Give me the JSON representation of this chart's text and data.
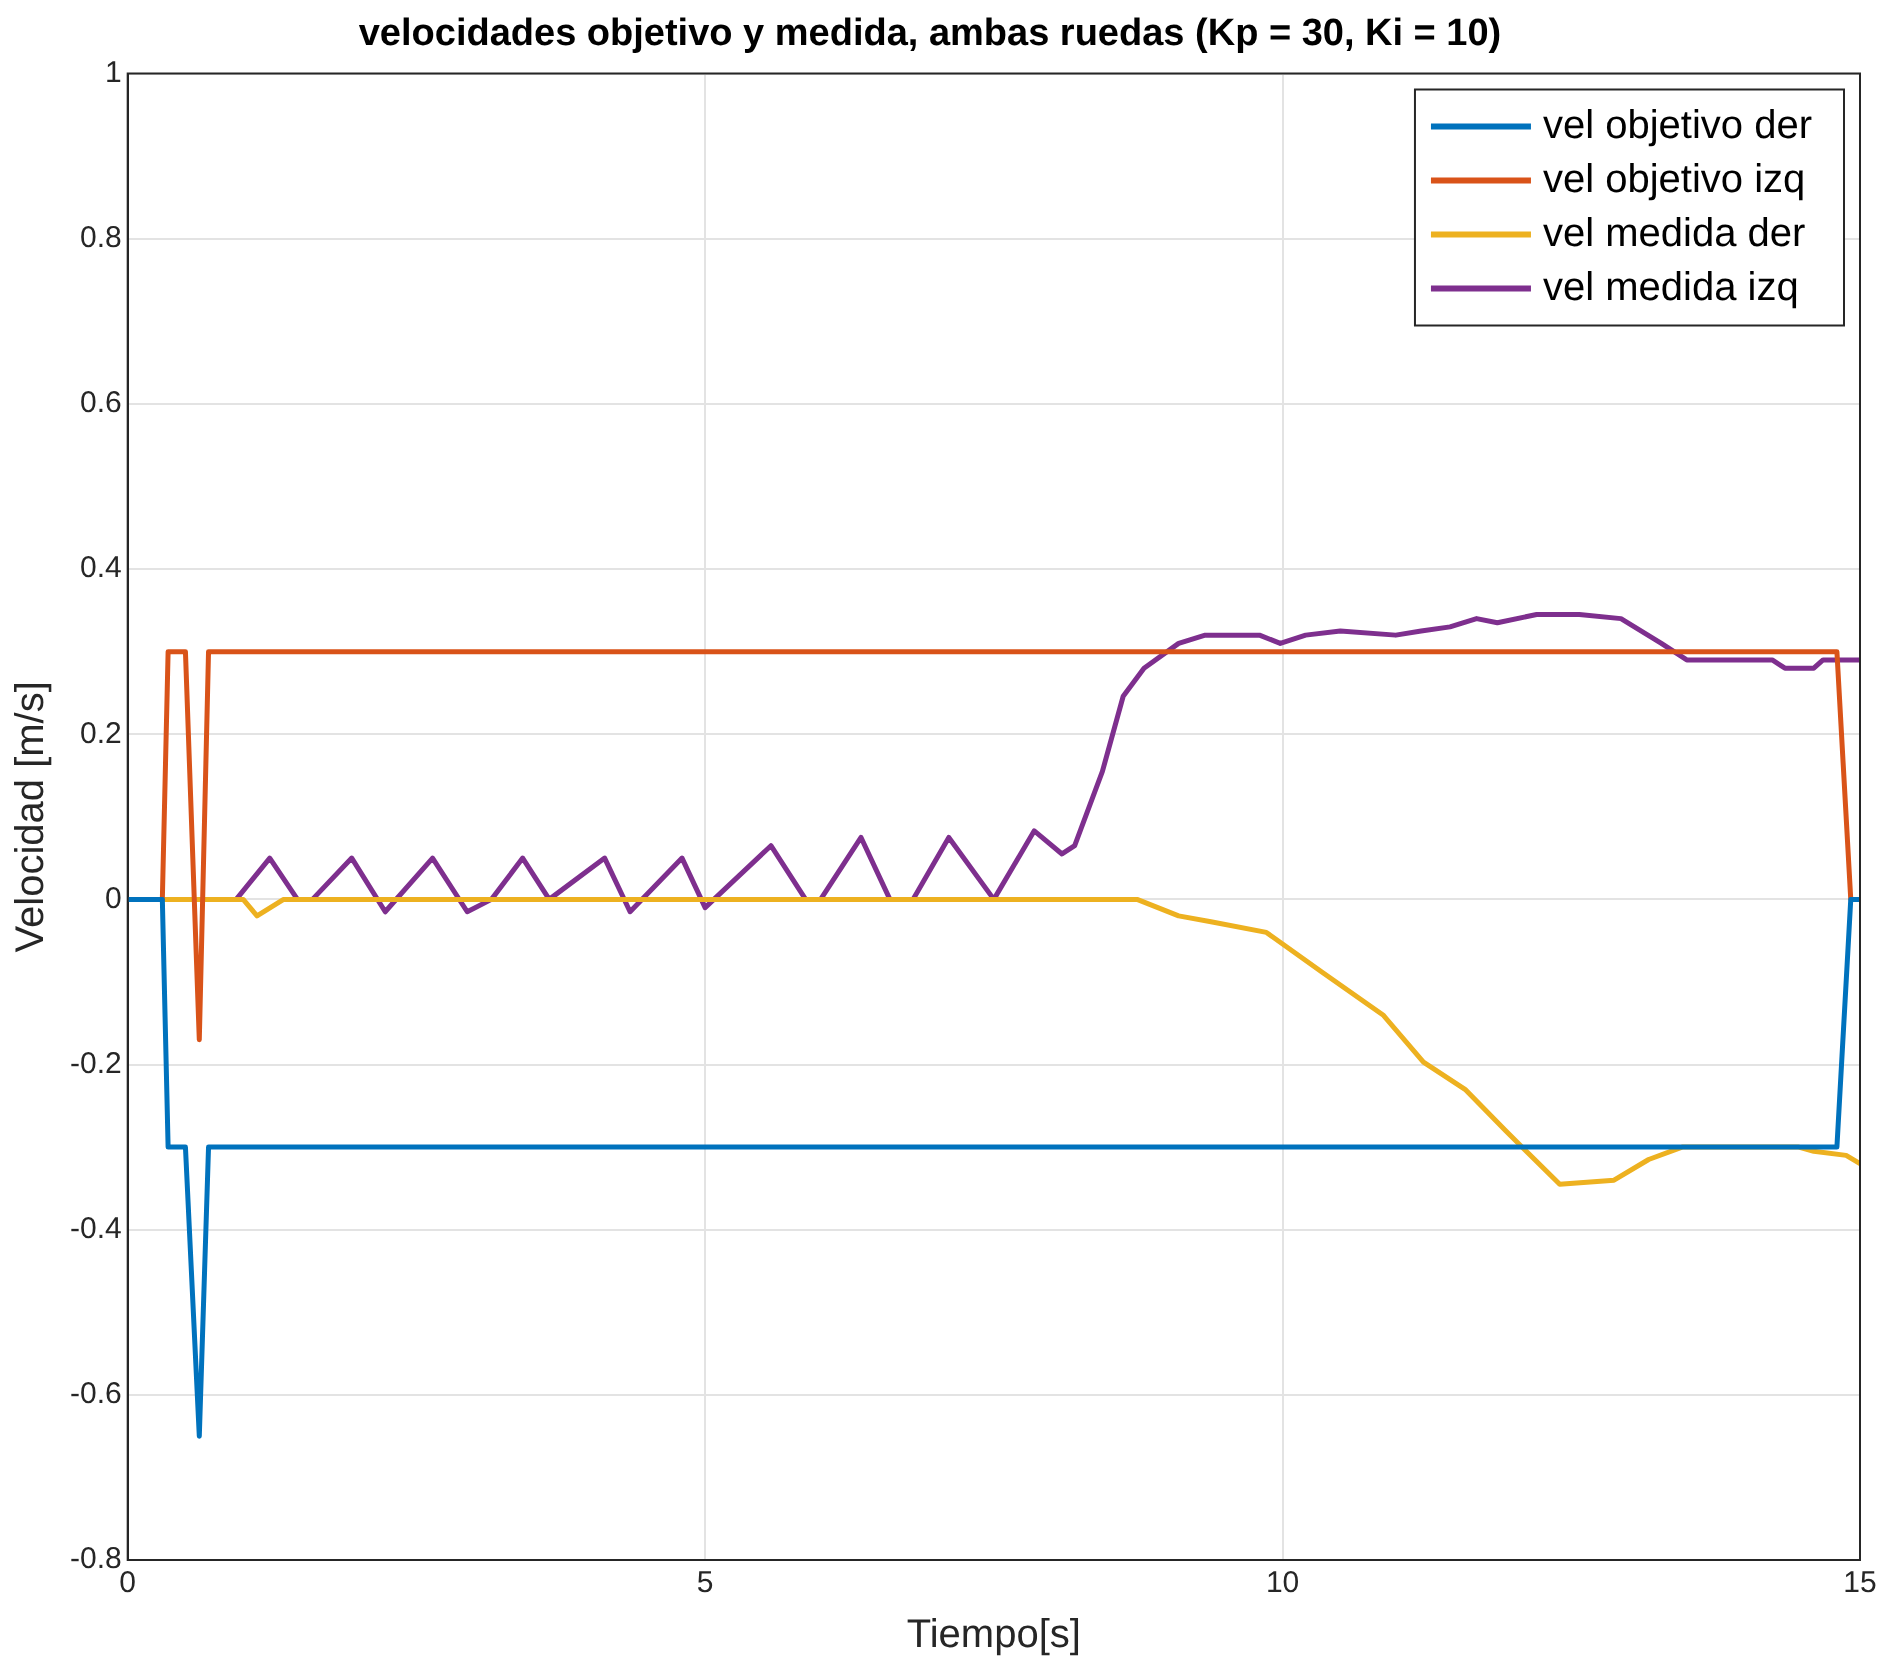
{
  "chart_data": {
    "type": "line",
    "title": "velocidades objetivo y medida, ambas ruedas (Kp = 30, Ki = 10)",
    "xlabel": "Tiempo[s]",
    "ylabel": "Velocidad [m/s]",
    "xlim": [
      0,
      15
    ],
    "xticks": [
      0,
      5,
      10,
      15
    ],
    "ylim": [
      -0.8,
      1
    ],
    "yticks": [
      -0.8,
      -0.6,
      -0.4,
      -0.2,
      0,
      0.2,
      0.4,
      0.6,
      0.8,
      1
    ],
    "grid": true,
    "legend": "top right",
    "marker": "none",
    "line_style": "solid",
    "series": [
      {
        "name": "vel objetivo der",
        "color": "#0072bd",
        "x": [
          0,
          0.3,
          0.35,
          0.5,
          0.62,
          0.7,
          14.8,
          14.92,
          15
        ],
        "values": [
          0,
          0,
          -0.3,
          -0.3,
          -0.65,
          -0.3,
          -0.3,
          0,
          0
        ]
      },
      {
        "name": "vel objetivo izq",
        "color": "#d95319",
        "x": [
          0,
          0.3,
          0.35,
          0.5,
          0.62,
          0.7,
          14.8,
          14.92,
          15
        ],
        "values": [
          0,
          0,
          0.3,
          0.3,
          -0.17,
          0.3,
          0.3,
          0,
          0
        ]
      },
      {
        "name": "vel medida der",
        "color": "#edb120",
        "x": [
          0,
          1.0,
          1.12,
          1.35,
          8.74,
          9.1,
          9.38,
          9.86,
          10.34,
          10.87,
          11.22,
          11.58,
          11.93,
          12.4,
          12.87,
          13.17,
          13.46,
          14.47,
          14.6,
          14.88,
          15
        ],
        "values": [
          0,
          0,
          -0.02,
          0,
          0,
          -0.02,
          -0.027,
          -0.04,
          -0.088,
          -0.14,
          -0.197,
          -0.23,
          -0.28,
          -0.345,
          -0.34,
          -0.315,
          -0.3,
          -0.3,
          -0.305,
          -0.31,
          -0.32
        ]
      },
      {
        "name": "vel medida izq",
        "color": "#7e2f8e",
        "x": [
          0,
          0.94,
          1.23,
          1.47,
          1.6,
          1.94,
          2.23,
          2.64,
          2.94,
          3.15,
          3.42,
          3.65,
          4.13,
          4.35,
          4.8,
          5.0,
          5.57,
          5.87,
          6.0,
          6.35,
          6.6,
          6.8,
          7.11,
          7.5,
          7.85,
          8.09,
          8.2,
          8.44,
          8.62,
          8.8,
          9.1,
          9.33,
          9.8,
          9.98,
          10.2,
          10.5,
          10.98,
          11.2,
          11.45,
          11.68,
          11.86,
          12.2,
          12.57,
          12.93,
          13.28,
          13.5,
          14.24,
          14.35,
          14.6,
          14.68,
          15
        ],
        "values": [
          0,
          0,
          0.05,
          0,
          0,
          0.05,
          -0.015,
          0.05,
          -0.015,
          0,
          0.05,
          0,
          0.05,
          -0.015,
          0.05,
          -0.01,
          0.065,
          0,
          0,
          0.075,
          0,
          0,
          0.075,
          0,
          0.083,
          0.055,
          0.065,
          0.155,
          0.246,
          0.28,
          0.31,
          0.32,
          0.32,
          0.31,
          0.32,
          0.325,
          0.32,
          0.325,
          0.33,
          0.34,
          0.335,
          0.345,
          0.345,
          0.34,
          0.31,
          0.29,
          0.29,
          0.28,
          0.28,
          0.29,
          0.29
        ]
      }
    ]
  }
}
